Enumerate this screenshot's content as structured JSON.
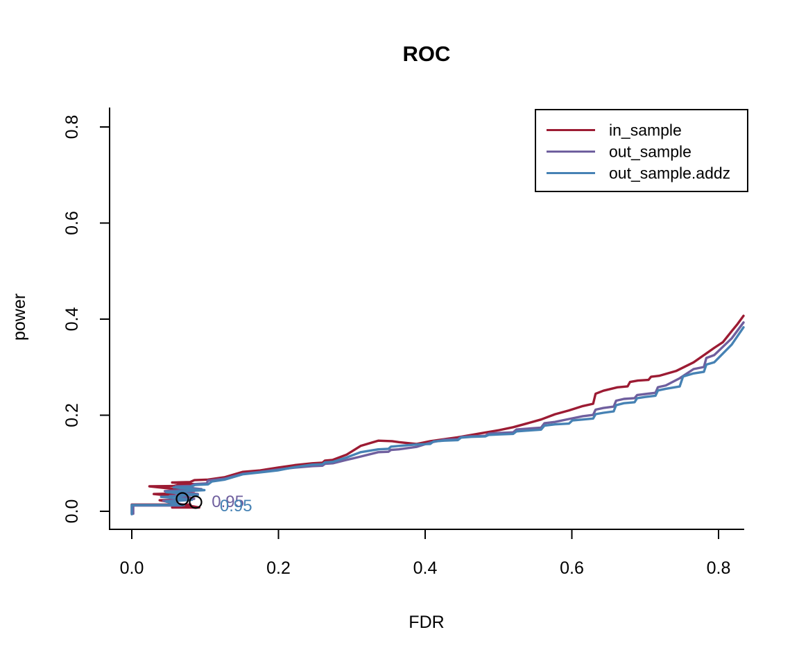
{
  "chart_data": {
    "type": "line",
    "title": "ROC",
    "xlabel": "FDR",
    "ylabel": "power",
    "xlim": [
      0.0,
      0.84
    ],
    "ylim": [
      0.0,
      0.84
    ],
    "x_ticks": [
      0.0,
      0.2,
      0.4,
      0.6,
      0.8
    ],
    "y_ticks": [
      0.0,
      0.2,
      0.4,
      0.6,
      0.8
    ],
    "x_tick_labels": [
      "0.0",
      "0.2",
      "0.4",
      "0.6",
      "0.8"
    ],
    "y_tick_labels": [
      "0.0",
      "0.2",
      "0.4",
      "0.6",
      "0.8"
    ],
    "grid": false,
    "axis_color": "#000000",
    "legend": {
      "position": "top-right",
      "border": true,
      "entries": [
        {
          "label": "in_sample",
          "color": "#9C1B33"
        },
        {
          "label": "out_sample",
          "color": "#6F5F9E"
        },
        {
          "label": "out_sample.addz",
          "color": "#4682B4"
        }
      ]
    },
    "series": [
      {
        "name": "in_sample",
        "color": "#9C1B33",
        "points": [
          [
            0.0,
            -0.005
          ],
          [
            0.0,
            0.014
          ],
          [
            0.08,
            0.014
          ],
          [
            0.055,
            0.008
          ],
          [
            0.092,
            0.008
          ],
          [
            0.038,
            0.023
          ],
          [
            0.08,
            0.028
          ],
          [
            0.03,
            0.036
          ],
          [
            0.085,
            0.042
          ],
          [
            0.024,
            0.052
          ],
          [
            0.09,
            0.056
          ],
          [
            0.055,
            0.06
          ],
          [
            0.104,
            0.066
          ],
          [
            0.127,
            0.071
          ],
          [
            0.151,
            0.082
          ],
          [
            0.175,
            0.085
          ],
          [
            0.199,
            0.091
          ],
          [
            0.222,
            0.096
          ],
          [
            0.246,
            0.1
          ],
          [
            0.274,
            0.107
          ],
          [
            0.293,
            0.118
          ],
          [
            0.312,
            0.136
          ],
          [
            0.336,
            0.147
          ],
          [
            0.355,
            0.146
          ],
          [
            0.364,
            0.144
          ],
          [
            0.388,
            0.14
          ],
          [
            0.407,
            0.146
          ],
          [
            0.426,
            0.15
          ],
          [
            0.444,
            0.154
          ],
          [
            0.463,
            0.159
          ],
          [
            0.482,
            0.164
          ],
          [
            0.501,
            0.169
          ],
          [
            0.52,
            0.175
          ],
          [
            0.539,
            0.183
          ],
          [
            0.558,
            0.191
          ],
          [
            0.577,
            0.202
          ],
          [
            0.596,
            0.21
          ],
          [
            0.615,
            0.219
          ],
          [
            0.643,
            0.251
          ],
          [
            0.662,
            0.258
          ],
          [
            0.69,
            0.272
          ],
          [
            0.719,
            0.282
          ],
          [
            0.742,
            0.292
          ],
          [
            0.766,
            0.31
          ],
          [
            0.78,
            0.325
          ],
          [
            0.794,
            0.34
          ],
          [
            0.806,
            0.352
          ],
          [
            0.818,
            0.375
          ],
          [
            0.826,
            0.39
          ],
          [
            0.834,
            0.407
          ]
        ]
      },
      {
        "name": "out_sample",
        "color": "#6F5F9E",
        "points": [
          [
            0.002,
            -0.005
          ],
          [
            0.002,
            0.012
          ],
          [
            0.068,
            0.012
          ],
          [
            0.043,
            0.022
          ],
          [
            0.085,
            0.026
          ],
          [
            0.052,
            0.032
          ],
          [
            0.09,
            0.036
          ],
          [
            0.045,
            0.042
          ],
          [
            0.095,
            0.046
          ],
          [
            0.06,
            0.052
          ],
          [
            0.102,
            0.058
          ],
          [
            0.104,
            0.064
          ],
          [
            0.127,
            0.068
          ],
          [
            0.151,
            0.078
          ],
          [
            0.175,
            0.082
          ],
          [
            0.199,
            0.087
          ],
          [
            0.222,
            0.091
          ],
          [
            0.246,
            0.094
          ],
          [
            0.274,
            0.1
          ],
          [
            0.293,
            0.107
          ],
          [
            0.312,
            0.114
          ],
          [
            0.336,
            0.123
          ],
          [
            0.364,
            0.129
          ],
          [
            0.388,
            0.134
          ],
          [
            0.407,
            0.143
          ],
          [
            0.426,
            0.149
          ],
          [
            0.463,
            0.156
          ],
          [
            0.501,
            0.163
          ],
          [
            0.539,
            0.172
          ],
          [
            0.577,
            0.186
          ],
          [
            0.596,
            0.192
          ],
          [
            0.615,
            0.198
          ],
          [
            0.643,
            0.215
          ],
          [
            0.671,
            0.234
          ],
          [
            0.7,
            0.244
          ],
          [
            0.728,
            0.262
          ],
          [
            0.747,
            0.277
          ],
          [
            0.766,
            0.296
          ],
          [
            0.794,
            0.325
          ],
          [
            0.818,
            0.36
          ],
          [
            0.834,
            0.393
          ]
        ]
      },
      {
        "name": "out_sample.addz",
        "color": "#4682B4",
        "points": [
          [
            0.0,
            -0.006
          ],
          [
            0.0,
            0.013
          ],
          [
            0.071,
            0.013
          ],
          [
            0.047,
            0.02
          ],
          [
            0.082,
            0.024
          ],
          [
            0.04,
            0.03
          ],
          [
            0.09,
            0.034
          ],
          [
            0.047,
            0.04
          ],
          [
            0.099,
            0.044
          ],
          [
            0.057,
            0.05
          ],
          [
            0.104,
            0.056
          ],
          [
            0.109,
            0.062
          ],
          [
            0.127,
            0.066
          ],
          [
            0.151,
            0.077
          ],
          [
            0.175,
            0.081
          ],
          [
            0.199,
            0.085
          ],
          [
            0.222,
            0.092
          ],
          [
            0.246,
            0.097
          ],
          [
            0.274,
            0.103
          ],
          [
            0.293,
            0.112
          ],
          [
            0.312,
            0.123
          ],
          [
            0.336,
            0.129
          ],
          [
            0.364,
            0.136
          ],
          [
            0.388,
            0.139
          ],
          [
            0.426,
            0.147
          ],
          [
            0.463,
            0.155
          ],
          [
            0.501,
            0.16
          ],
          [
            0.539,
            0.168
          ],
          [
            0.577,
            0.181
          ],
          [
            0.615,
            0.191
          ],
          [
            0.643,
            0.205
          ],
          [
            0.671,
            0.225
          ],
          [
            0.7,
            0.238
          ],
          [
            0.728,
            0.255
          ],
          [
            0.766,
            0.287
          ],
          [
            0.794,
            0.31
          ],
          [
            0.818,
            0.347
          ],
          [
            0.834,
            0.383
          ]
        ]
      }
    ],
    "annotations": {
      "threshold_points": [
        {
          "x": 0.069,
          "y": 0.026,
          "shape": "open-circle",
          "color": "#000000"
        },
        {
          "x": 0.087,
          "y": 0.019,
          "shape": "open-circle",
          "color": "#000000"
        }
      ],
      "threshold_labels": [
        {
          "text": "0.95",
          "x": 0.109,
          "y": 0.009,
          "color": "#6F5F9E"
        },
        {
          "text": "0.95",
          "x": 0.12,
          "y": 0.0,
          "color": "#4682B4"
        }
      ]
    }
  }
}
